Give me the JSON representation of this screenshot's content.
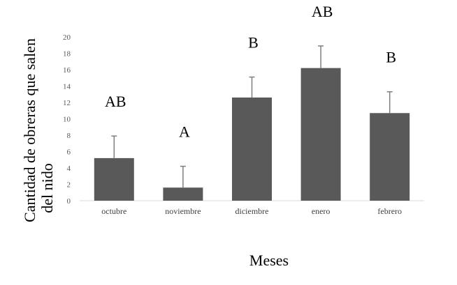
{
  "chart_data": {
    "type": "bar",
    "title": "",
    "xlabel": "Meses",
    "ylabel_lines": [
      "Cantidad de obreras que salen",
      "del nido"
    ],
    "ylabel": "Cantidad de obreras que salen del nido",
    "categories": [
      "octubre",
      "noviembre",
      "diciembre",
      "enero",
      "febrero"
    ],
    "values": [
      5.2,
      1.6,
      12.6,
      16.2,
      10.7
    ],
    "error_upper": [
      2.7,
      2.6,
      2.5,
      2.7,
      2.6
    ],
    "significance_letters": [
      "AB",
      "A",
      "B",
      "AB",
      "B"
    ],
    "ylim": [
      0,
      20
    ],
    "yticks": [
      0,
      2,
      4,
      6,
      8,
      10,
      12,
      14,
      16,
      18,
      20
    ],
    "grid": false,
    "legend": null,
    "bar_color": "#595959",
    "error_bar_color": "#7f7f7f"
  }
}
